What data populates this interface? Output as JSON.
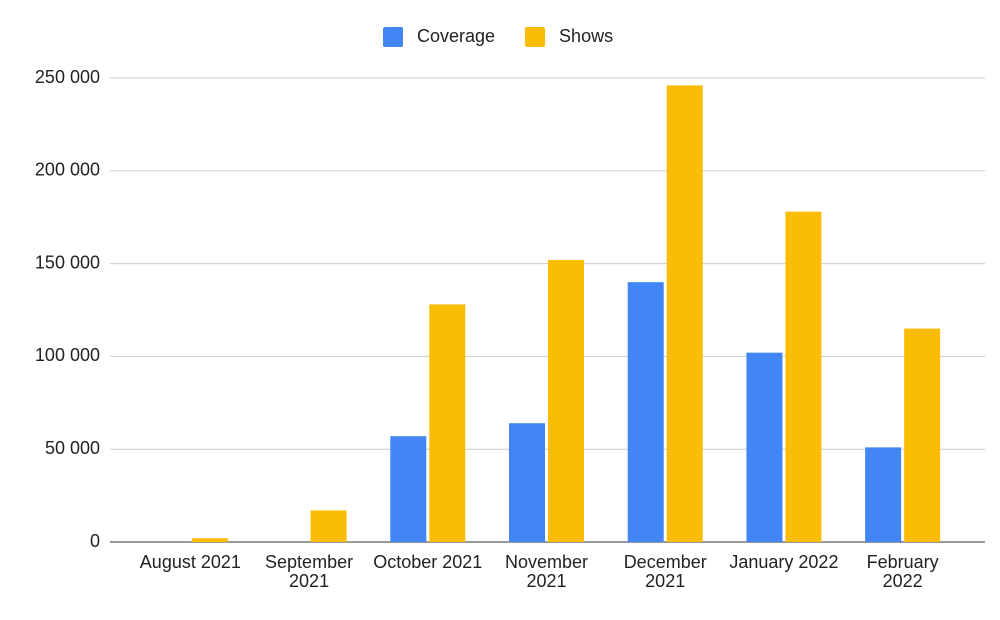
{
  "chart_data": {
    "type": "bar",
    "categories": [
      "August 2021",
      "September 2021",
      "October 2021",
      "November 2021",
      "December 2021",
      "January 2022",
      "February 2022"
    ],
    "series": [
      {
        "name": "Coverage",
        "color": "#4285f4",
        "values": [
          0,
          0,
          57000,
          64000,
          140000,
          102000,
          51000
        ]
      },
      {
        "name": "Shows",
        "color": "#fbbc04",
        "values": [
          2000,
          17000,
          128000,
          152000,
          246000,
          178000,
          115000
        ]
      }
    ],
    "ylim": [
      0,
      250000
    ],
    "yticks": [
      0,
      {
        "value": 50000,
        "label": "50 000"
      },
      {
        "value": 100000,
        "label": "100 000"
      },
      {
        "value": 150000,
        "label": "150 000"
      },
      {
        "value": 200000,
        "label": "200 000"
      },
      {
        "value": 250000,
        "label": "250 000"
      }
    ],
    "grid": true,
    "legend": "top"
  }
}
